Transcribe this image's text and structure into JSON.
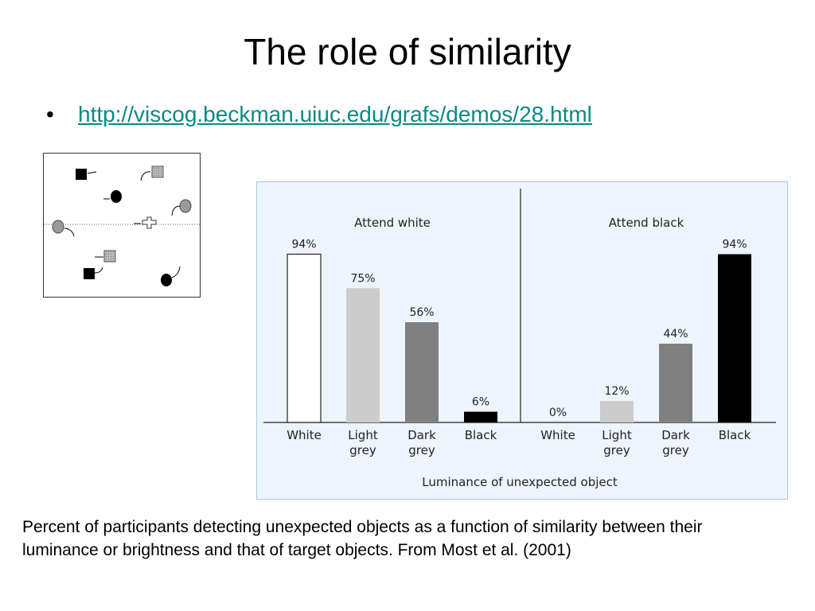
{
  "slide": {
    "title": "The role of similarity",
    "bullet_symbol": "•",
    "link_text": "http://viscog.beckman.uiuc.edu/grafs/demos/28.html",
    "caption": "Percent of participants detecting unexpected objects as a function of similarity between their luminance or brightness and that of target objects. From Most et al. (2001)"
  },
  "colors": {
    "link": "#0a8a86",
    "panel_bg": "#eef4fc",
    "panel_border": "#a8c6e4",
    "white_bar": "#ffffff",
    "light_grey_bar": "#cccccc",
    "dark_grey_bar": "#808080",
    "black_bar": "#000000"
  },
  "chart_data": {
    "type": "bar",
    "xlabel": "Luminance of unexpected object",
    "ylabel": "",
    "ylim": [
      0,
      100
    ],
    "grid": false,
    "categories": [
      "White",
      "Light grey",
      "Dark grey",
      "Black"
    ],
    "series": [
      {
        "name": "Attend white",
        "values": [
          94,
          75,
          56,
          6
        ],
        "labels": [
          "94%",
          "75%",
          "56%",
          "6%"
        ]
      },
      {
        "name": "Attend black",
        "values": [
          0,
          12,
          44,
          94
        ],
        "labels": [
          "0%",
          "12%",
          "44%",
          "94%"
        ]
      }
    ],
    "bar_colors": [
      "#ffffff",
      "#cccccc",
      "#808080",
      "#000000"
    ]
  },
  "demo": {
    "icons": [
      "black-square-icon",
      "black-circle-icon",
      "grey-square-icon",
      "grey-circle-icon",
      "white-cross-icon"
    ]
  }
}
